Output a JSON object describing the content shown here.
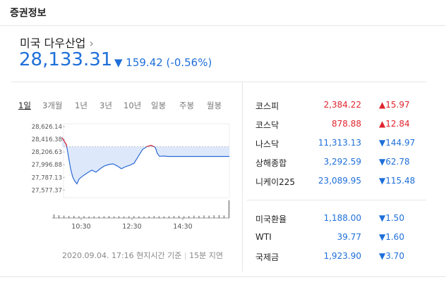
{
  "header": {
    "title": "증권정보"
  },
  "quote": {
    "name": "미국 다우산업",
    "price": "28,133.31",
    "change": "▼ 159.42 (-0.56%)"
  },
  "tabs": {
    "items": [
      "1일",
      "3개월",
      "1년",
      "3년",
      "10년",
      "일봉",
      "주봉",
      "월봉"
    ],
    "selected": 0
  },
  "chart_data": {
    "type": "line",
    "xlim": [
      0,
      420
    ],
    "xticks": [
      {
        "value": 60,
        "label": "10:30"
      },
      {
        "value": 180,
        "label": "12:30"
      },
      {
        "value": 300,
        "label": "14:30"
      }
    ],
    "ylim": [
      27500,
      28720
    ],
    "yticks": [
      {
        "value": 28626.14,
        "label": "28,626.14"
      },
      {
        "value": 28416.38,
        "label": "28,416.38"
      },
      {
        "value": 28206.63,
        "label": "28,206.63"
      },
      {
        "value": 27996.88,
        "label": "27,996.88"
      },
      {
        "value": 27787.13,
        "label": "27,787.13"
      },
      {
        "value": 27577.37,
        "label": "27,577.37"
      }
    ],
    "prev_close": 28292.73,
    "up_color": "#e0262f",
    "down_color": "#2c6ad4",
    "fill": "#dde8fb",
    "x": [
      15,
      20,
      25,
      30,
      35,
      40,
      45,
      50,
      55,
      65,
      75,
      85,
      95,
      105,
      115,
      125,
      135,
      145,
      155,
      165,
      175,
      185,
      195,
      205,
      215,
      225,
      235,
      240,
      245,
      255,
      265,
      315,
      410
    ],
    "values": [
      28444,
      28387,
      28330,
      28136,
      27931,
      27794,
      27726,
      27680,
      27760,
      27817,
      27862,
      27908,
      27874,
      27931,
      27977,
      28000,
      28011,
      27977,
      27931,
      27965,
      27988,
      28022,
      28136,
      28250,
      28296,
      28318,
      28284,
      28182,
      28136,
      28140,
      28133,
      28133,
      28133.31
    ],
    "volume": {
      "color": "#555",
      "ylim": [
        0,
        100
      ],
      "values": [
        18,
        14,
        12,
        10,
        11,
        9,
        10,
        8,
        9,
        8,
        9,
        10,
        8,
        9,
        8,
        9,
        10,
        9,
        8,
        9,
        10,
        9,
        8,
        9,
        10,
        11,
        9,
        10,
        12,
        11,
        13,
        12,
        14,
        15,
        13,
        90
      ]
    }
  },
  "footer": {
    "timestamp": "2020.09.04. 17:16 현지시간 기준",
    "delay": "15분 지연"
  },
  "indices": [
    {
      "name": "코스피",
      "value": "2,384.22",
      "change": "▲15.97",
      "direction": "up"
    },
    {
      "name": "코스닥",
      "value": "878.88",
      "change": "▲12.84",
      "direction": "up"
    },
    {
      "name": "나스닥",
      "value": "11,313.13",
      "change": "▼144.97",
      "direction": "down"
    },
    {
      "name": "상해종합",
      "value": "3,292.59",
      "change": "▼62.78",
      "direction": "down"
    },
    {
      "name": "니케이225",
      "value": "23,089.95",
      "change": "▼115.48",
      "direction": "down"
    }
  ],
  "markets": [
    {
      "name": "미국환율",
      "value": "1,188.00",
      "change": "▼1.50",
      "direction": "down"
    },
    {
      "name": "WTI",
      "value": "39.77",
      "change": "▼1.60",
      "direction": "down"
    },
    {
      "name": "국제금",
      "value": "1,923.90",
      "change": "▼3.70",
      "direction": "down"
    }
  ]
}
